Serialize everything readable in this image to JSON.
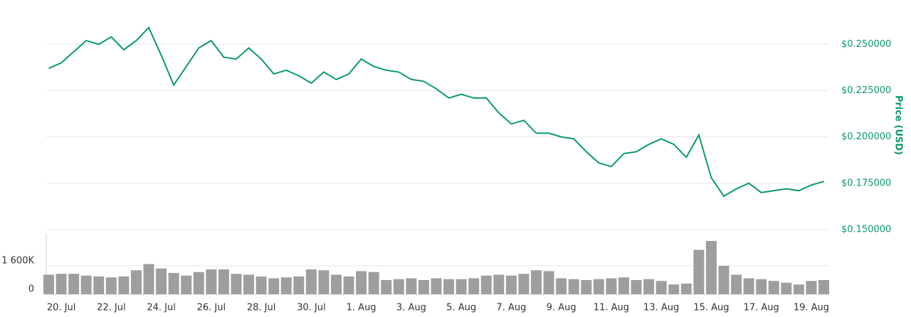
{
  "chart_data": [
    {
      "type": "line",
      "y_label": "Price (USD)",
      "color": "#0a9a6b",
      "values": [
        0.237,
        0.24,
        0.246,
        0.252,
        0.25,
        0.254,
        0.247,
        0.252,
        0.259,
        0.244,
        0.228,
        0.238,
        0.248,
        0.252,
        0.243,
        0.242,
        0.248,
        0.242,
        0.234,
        0.236,
        0.233,
        0.229,
        0.235,
        0.231,
        0.234,
        0.242,
        0.238,
        0.236,
        0.235,
        0.231,
        0.23,
        0.226,
        0.221,
        0.223,
        0.221,
        0.221,
        0.213,
        0.207,
        0.209,
        0.202,
        0.202,
        0.2,
        0.199,
        0.192,
        0.186,
        0.184,
        0.191,
        0.192,
        0.196,
        0.199,
        0.196,
        0.189,
        0.201,
        0.178,
        0.168,
        0.172,
        0.175,
        0.17,
        0.171,
        0.172,
        0.171,
        0.174,
        0.176
      ],
      "ylim": [
        0.15,
        0.2625
      ],
      "yticks": [
        {
          "value": 0.15,
          "label": "$0.150000"
        },
        {
          "value": 0.175,
          "label": "$0.175000"
        },
        {
          "value": 0.2,
          "label": "$0.200000"
        },
        {
          "value": 0.225,
          "label": "$0.225000"
        },
        {
          "value": 0.25,
          "label": "$0.250000"
        }
      ],
      "grid": true
    },
    {
      "type": "bar",
      "color": "#9e9e9e",
      "categories": [
        null,
        "20. Jul",
        null,
        null,
        null,
        "22. Jul",
        null,
        null,
        null,
        "24. Jul",
        null,
        null,
        null,
        "26. Jul",
        null,
        null,
        null,
        "28. Jul",
        null,
        null,
        null,
        "30. Jul",
        null,
        null,
        null,
        "1. Aug",
        null,
        null,
        null,
        "3. Aug",
        null,
        null,
        null,
        "5. Aug",
        null,
        null,
        null,
        "7. Aug",
        null,
        null,
        null,
        "9. Aug",
        null,
        null,
        null,
        "11. Aug",
        null,
        null,
        null,
        "13. Aug",
        null,
        null,
        null,
        "15. Aug",
        null,
        null,
        null,
        "17. Aug",
        null,
        null,
        null,
        "19. Aug",
        null
      ],
      "values": [
        1100000,
        1150000,
        1150000,
        1050000,
        1000000,
        950000,
        1000000,
        1350000,
        1700000,
        1450000,
        1200000,
        1050000,
        1250000,
        1400000,
        1400000,
        1150000,
        1100000,
        1000000,
        900000,
        950000,
        1000000,
        1400000,
        1350000,
        1100000,
        1000000,
        1300000,
        1250000,
        800000,
        850000,
        900000,
        800000,
        900000,
        850000,
        850000,
        900000,
        1050000,
        1100000,
        1050000,
        1150000,
        1350000,
        1300000,
        900000,
        850000,
        800000,
        850000,
        900000,
        950000,
        800000,
        850000,
        750000,
        550000,
        600000,
        2500000,
        3000000,
        1600000,
        1100000,
        900000,
        850000,
        750000,
        650000,
        550000,
        750000,
        800000
      ],
      "ylim": [
        0,
        3280000
      ],
      "yticks": [
        0,
        {
          "value": 1600000,
          "label": "1 600K"
        }
      ]
    }
  ]
}
